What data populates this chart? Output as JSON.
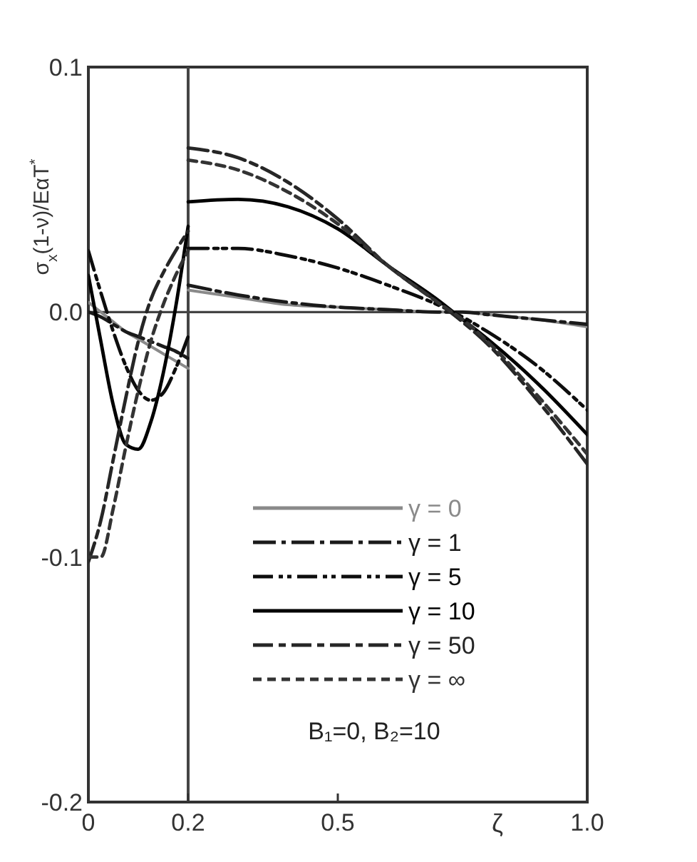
{
  "chart_data": {
    "type": "line",
    "ylabel": "σ$_{x}$(1-ν)/EαT$^{*}$",
    "xlabel": "ζ",
    "xlim": [
      0,
      1.0
    ],
    "xticks": [
      0,
      0.2,
      0.5,
      {
        "value": 1.0,
        "label": "1.0"
      }
    ],
    "ylim": [
      -0.2,
      0.1
    ],
    "yticks": [
      {
        "value": -0.2,
        "label": "-0.2"
      },
      {
        "value": -0.1,
        "label": "-0.1"
      },
      {
        "value": 0,
        "label": "0.0"
      },
      0.1
    ],
    "ref_lines": [
      {
        "axis": "x",
        "value": 0.2
      },
      {
        "axis": "y",
        "value": 0
      }
    ],
    "legend": "bottom",
    "grid": false,
    "annotations": [
      "B₁=0, B₂=10"
    ],
    "series": [
      {
        "name": "γ = 0",
        "color": "#8a8a8a",
        "line_style": "solid",
        "x": [
          0,
          0.025,
          0.05,
          0.075,
          0.1,
          0.125,
          0.15,
          0.175,
          0.2,
          0.2,
          0.3,
          0.4,
          0.5,
          0.6,
          0.7,
          0.75,
          0.8,
          0.9,
          1.0
        ],
        "values": [
          0.004,
          0.0,
          -0.004,
          -0.008,
          -0.011,
          -0.014,
          -0.017,
          -0.02,
          -0.023,
          0.009,
          0.006,
          0.003,
          0.002,
          0.001,
          0,
          0,
          -0.001,
          -0.003,
          -0.006
        ]
      },
      {
        "name": "γ = 1",
        "color": "#1a1a1a",
        "line_style": "dashed",
        "x": [
          0,
          0.025,
          0.05,
          0.075,
          0.1,
          0.125,
          0.15,
          0.175,
          0.2,
          0.2,
          0.3,
          0.4,
          0.5,
          0.6,
          0.7,
          0.75,
          0.8,
          0.9,
          1.0
        ],
        "values": [
          0.0,
          -0.002,
          -0.005,
          -0.008,
          -0.01,
          -0.012,
          -0.014,
          -0.016,
          -0.019,
          0.011,
          0.007,
          0.004,
          0.002,
          0.001,
          0,
          0,
          -0.001,
          -0.003,
          -0.005
        ]
      },
      {
        "name": "γ = 5",
        "color": "#0d0d0d",
        "line_style": "dashed",
        "x": [
          0,
          0.025,
          0.05,
          0.075,
          0.1,
          0.125,
          0.15,
          0.175,
          0.2,
          0.2,
          0.3,
          0.4,
          0.5,
          0.6,
          0.7,
          0.75,
          0.8,
          0.9,
          1.0
        ],
        "values": [
          0.025,
          0.008,
          -0.008,
          -0.022,
          -0.032,
          -0.036,
          -0.033,
          -0.023,
          -0.01,
          0.026,
          0.026,
          0.023,
          0.018,
          0.011,
          0.003,
          -0.002,
          -0.008,
          -0.022,
          -0.04
        ]
      },
      {
        "name": "γ = 10",
        "color": "#000000",
        "line_style": "solid",
        "x": [
          0,
          0.025,
          0.05,
          0.075,
          0.1,
          0.125,
          0.15,
          0.175,
          0.2,
          0.2,
          0.3,
          0.4,
          0.5,
          0.6,
          0.7,
          0.75,
          0.8,
          0.9,
          1.0
        ],
        "values": [
          0.015,
          -0.012,
          -0.038,
          -0.054,
          -0.056,
          -0.045,
          -0.025,
          0.002,
          0.035,
          0.045,
          0.046,
          0.043,
          0.034,
          0.019,
          0.005,
          -0.003,
          -0.011,
          -0.029,
          -0.05
        ]
      },
      {
        "name": "γ = 50",
        "color": "#262626",
        "line_style": "dashed",
        "x": [
          0,
          0.025,
          0.05,
          0.075,
          0.1,
          0.125,
          0.15,
          0.175,
          0.2,
          0.2,
          0.3,
          0.4,
          0.5,
          0.6,
          0.7,
          0.75,
          0.8,
          0.9,
          1.0
        ],
        "values": [
          -0.102,
          -0.085,
          -0.06,
          -0.035,
          -0.012,
          0.005,
          0.016,
          0.025,
          0.033,
          0.067,
          0.063,
          0.053,
          0.038,
          0.019,
          0.004,
          -0.004,
          -0.013,
          -0.036,
          -0.062
        ]
      },
      {
        "name": "γ = ∞",
        "color": "#333333",
        "line_style": "dashed",
        "x": [
          0,
          0.025,
          0.05,
          0.075,
          0.1,
          0.125,
          0.15,
          0.175,
          0.2,
          0.2,
          0.3,
          0.4,
          0.5,
          0.6,
          0.7,
          0.75,
          0.8,
          0.9,
          1.0
        ],
        "values": [
          -0.1,
          -0.1,
          -0.08,
          -0.055,
          -0.032,
          -0.012,
          0.003,
          0.015,
          0.025,
          0.062,
          0.058,
          0.049,
          0.036,
          0.019,
          0.004,
          -0.003,
          -0.012,
          -0.034,
          -0.058
        ]
      }
    ]
  }
}
